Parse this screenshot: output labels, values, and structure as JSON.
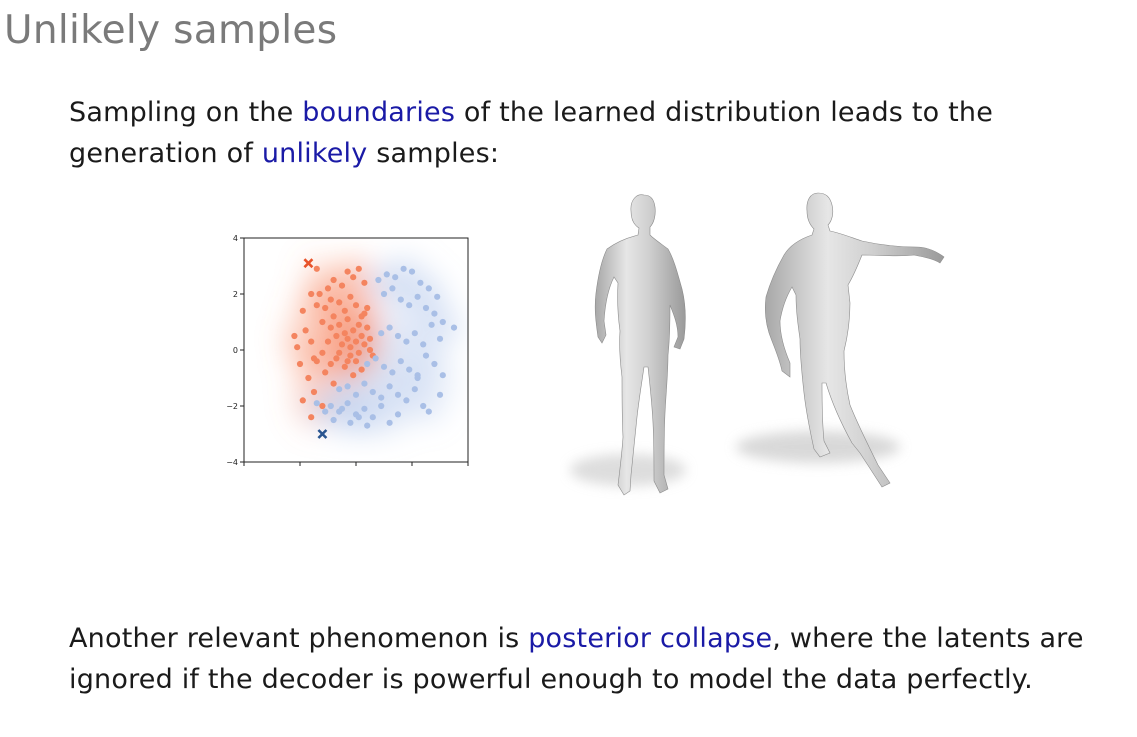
{
  "slide": {
    "title": "Unlikely samples"
  },
  "para1": {
    "before": "Sampling on the ",
    "highlight1": "boundaries",
    "middle": " of the learned distribution leads to the generation of ",
    "highlight2": "unlikely",
    "after": " samples:"
  },
  "para2": {
    "before": "Another relevant phenomenon is ",
    "highlight": "posterior collapse",
    "after": ", where the latents are ignored if the decoder is powerful enough to model the data perfectly."
  },
  "colors": {
    "highlight": "#1a1aa6",
    "orange_cluster": "#f4845f",
    "blue_cluster": "#a9bfe6",
    "orange_marker": "#e8532a",
    "blue_marker": "#2a5590"
  },
  "chart_data": {
    "type": "scatter",
    "title": "",
    "xlabel": "",
    "ylabel": "",
    "xlim": [
      -4,
      4
    ],
    "ylim": [
      -4,
      4
    ],
    "yticks": [
      "4",
      "2",
      "0",
      "−2",
      "−4"
    ],
    "grid": false,
    "series": [
      {
        "color": "#f4845f",
        "x": [
          -1.2,
          -0.9,
          -0.8,
          -0.6,
          -0.4,
          -0.3,
          -0.1,
          0.1,
          0.2,
          0.3,
          0.4,
          0.5,
          -1.0,
          -0.7,
          -0.5,
          -0.3,
          -0.2,
          0.0,
          0.1,
          0.3,
          0.5,
          0.6,
          -1.4,
          -1.1,
          -0.9,
          -0.6,
          -0.4,
          -0.2,
          0.0,
          0.2,
          0.4,
          -1.3,
          -1.0,
          -0.8,
          -0.5,
          -0.3,
          -0.1,
          0.1,
          0.3,
          -1.5,
          -1.2,
          -0.9,
          -0.7,
          -0.4,
          -0.2,
          0.0,
          0.2,
          -2.1,
          -1.8,
          -1.6,
          -1.4,
          -1.1,
          -0.8,
          -0.6,
          -0.3,
          -0.1,
          -2.0,
          -1.7,
          -1.5,
          -1.2,
          -2.2,
          -1.9,
          -1.6,
          -1.4,
          -1.9,
          -1.6
        ],
        "y": [
          1.0,
          0.8,
          1.2,
          0.9,
          0.6,
          1.1,
          0.7,
          0.9,
          0.5,
          1.3,
          0.8,
          0.4,
          0.3,
          0.5,
          0.2,
          0.4,
          0.1,
          0.3,
          -0.1,
          0.2,
          0.0,
          -0.2,
          1.6,
          1.5,
          1.8,
          1.7,
          1.4,
          1.9,
          1.6,
          1.2,
          1.5,
          2.0,
          2.2,
          2.5,
          2.3,
          2.8,
          2.6,
          2.9,
          2.4,
          -0.3,
          -0.1,
          -0.5,
          -0.3,
          -0.6,
          -0.2,
          -0.4,
          -0.7,
          0.1,
          0.7,
          0.3,
          -0.4,
          -0.8,
          -1.2,
          -0.1,
          -0.4,
          -0.9,
          -0.5,
          -1.0,
          -1.5,
          -2.0,
          0.5,
          1.4,
          2.0,
          2.9,
          -1.8,
          -2.4
        ]
      },
      {
        "color": "#a9bfe6",
        "x": [
          0.8,
          1.1,
          1.4,
          1.7,
          2.0,
          2.3,
          2.6,
          2.9,
          1.0,
          1.3,
          1.6,
          1.9,
          2.2,
          2.5,
          2.8,
          3.1,
          3.5,
          0.9,
          1.2,
          1.5,
          1.8,
          2.1,
          2.4,
          2.7,
          3.0,
          0.4,
          0.7,
          1.0,
          1.3,
          1.6,
          1.9,
          2.2,
          2.5,
          2.8,
          3.1,
          -0.6,
          -0.3,
          0.0,
          0.3,
          0.6,
          0.9,
          1.2,
          1.5,
          1.8,
          2.1,
          2.4,
          -0.9,
          -0.6,
          -0.3,
          0.0,
          0.3,
          0.6,
          0.9,
          1.2,
          1.5,
          -1.4,
          -1.1,
          -0.8,
          -0.5,
          -0.2,
          0.1,
          0.4,
          2.6,
          3.0,
          2.2
        ],
        "y": [
          2.5,
          2.7,
          2.6,
          2.9,
          2.8,
          2.4,
          2.2,
          1.9,
          2.0,
          2.2,
          1.8,
          1.6,
          1.9,
          1.5,
          1.3,
          1.0,
          0.8,
          0.6,
          0.8,
          0.5,
          0.3,
          0.6,
          0.2,
          0.9,
          0.4,
          -0.5,
          -0.3,
          -0.6,
          -0.8,
          -0.4,
          -0.7,
          -1.0,
          -0.2,
          -0.5,
          -0.9,
          -1.4,
          -1.3,
          -1.6,
          -1.2,
          -1.5,
          -1.7,
          -1.3,
          -1.6,
          -1.8,
          -1.4,
          -2.0,
          -2.0,
          -2.2,
          -1.9,
          -2.3,
          -2.1,
          -2.4,
          -2.0,
          -2.6,
          -2.3,
          -1.9,
          -2.2,
          -2.5,
          -2.1,
          -2.6,
          -2.4,
          -2.7,
          -2.2,
          -1.6,
          -0.9
        ]
      }
    ],
    "markers": [
      {
        "symbol": "x",
        "x": -1.7,
        "y": 3.1,
        "color": "#e8532a"
      },
      {
        "symbol": "x",
        "x": -1.2,
        "y": -3.0,
        "color": "#2a5590"
      }
    ]
  }
}
